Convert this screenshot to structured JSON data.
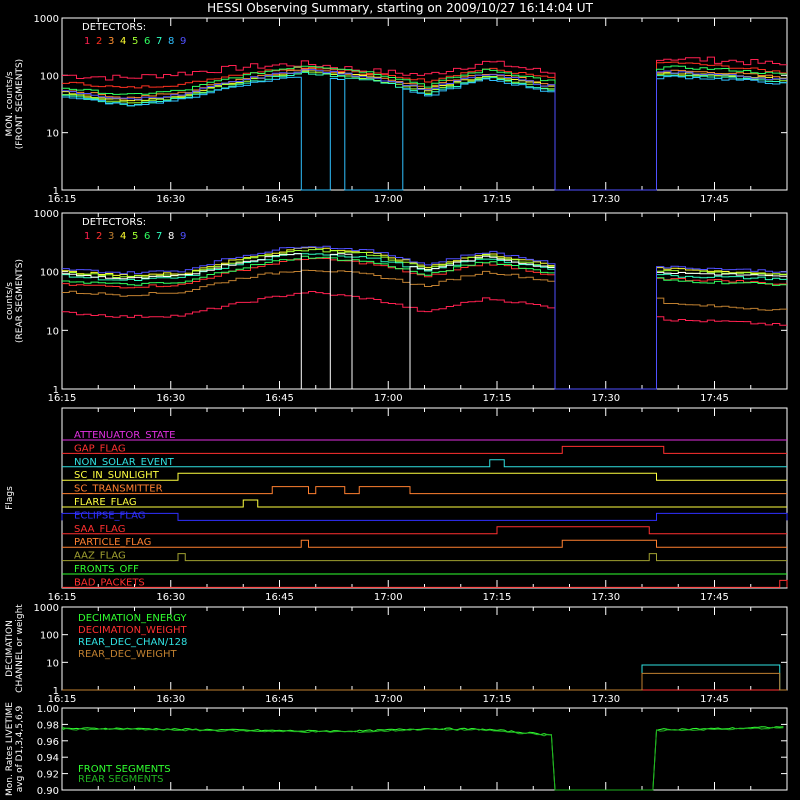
{
  "title": "HESSI Observing Summary, starting on 2009/10/27 16:14:04 UT",
  "colors": {
    "det": [
      "#ff2050",
      "#ff3020",
      "#ff9030",
      "#ffff30",
      "#a0ff30",
      "#30ff60",
      "#30ffc0",
      "#30c0ff",
      "#5050ff"
    ],
    "rear_det": [
      "#ff2050",
      "#ff3030",
      "#c08030",
      "#ffff30",
      "#a0ff30",
      "#30ff60",
      "#30ffc0",
      "#ffffff",
      "#5050ff"
    ]
  },
  "chart_data": [
    {
      "type": "line",
      "id": "front",
      "ylabel": [
        "MON. counts/s",
        "(FRONT SEGMENTS)"
      ],
      "yscale": "log",
      "ylim": [
        1,
        1000
      ],
      "yticks": [
        "1",
        "10",
        "100",
        "1000"
      ],
      "xlim": [
        "16:15",
        "17:55"
      ],
      "xticks": [
        "16:15",
        "16:30",
        "16:45",
        "17:00",
        "17:15",
        "17:30",
        "17:45"
      ],
      "legend_title": "DETECTORS:",
      "legend_items": [
        "1",
        "2",
        "3",
        "4",
        "5",
        "6",
        "7",
        "8",
        "9"
      ],
      "gaps": [
        [
          "17:23",
          "17:37"
        ]
      ],
      "series": [
        {
          "detector": "1",
          "levels": [
            100,
            90,
            110,
            140,
            160,
            120,
            100,
            170,
            110,
            140,
            200,
            180,
            150
          ],
          "noise": 0.25
        },
        {
          "detector": "2",
          "levels": [
            75,
            60,
            70,
            110,
            140,
            110,
            80,
            130,
            90,
            100,
            170,
            140,
            110
          ],
          "noise": 0.1
        },
        {
          "detector": "3",
          "levels": [
            55,
            40,
            50,
            90,
            130,
            100,
            60,
            110,
            70,
            90,
            120,
            110,
            90
          ],
          "noise": 0.1
        },
        {
          "detector": "4",
          "levels": [
            50,
            35,
            45,
            85,
            120,
            95,
            55,
            100,
            65,
            85,
            110,
            100,
            85
          ],
          "noise": 0.1
        },
        {
          "detector": "5",
          "levels": [
            48,
            33,
            42,
            80,
            115,
            90,
            50,
            95,
            60,
            80,
            105,
            95,
            80
          ],
          "noise": 0.1
        },
        {
          "detector": "6",
          "levels": [
            60,
            45,
            55,
            100,
            150,
            115,
            65,
            125,
            80,
            95,
            140,
            125,
            100
          ],
          "noise": 0.1
        },
        {
          "detector": "7",
          "levels": [
            45,
            30,
            40,
            75,
            110,
            85,
            45,
            90,
            55,
            75,
            100,
            90,
            75
          ],
          "noise": 0.1
        },
        {
          "detector": "8",
          "levels": [
            42,
            30,
            38,
            70,
            100,
            80,
            42,
            85,
            52,
            70,
            95,
            85,
            70
          ],
          "noise": 0.1,
          "dropouts": [
            [
              "16:48",
              "16:52"
            ],
            [
              "16:54",
              "17:02"
            ]
          ]
        },
        {
          "detector": "9",
          "levels": [
            52,
            38,
            46,
            85,
            125,
            95,
            55,
            105,
            65,
            85,
            115,
            100,
            82
          ],
          "noise": 0.1
        }
      ]
    },
    {
      "type": "line",
      "id": "rear",
      "ylabel": [
        "counts/s",
        "(REAR SEGMENTS)"
      ],
      "yscale": "log",
      "ylim": [
        1,
        1000
      ],
      "yticks": [
        "1",
        "10",
        "100",
        "1000"
      ],
      "xlim": [
        "16:15",
        "17:55"
      ],
      "xticks": [
        "16:15",
        "16:30",
        "16:45",
        "17:00",
        "17:15",
        "17:30",
        "17:45"
      ],
      "legend_title": "DETECTORS:",
      "legend_items": [
        "1",
        "2",
        "3",
        "4",
        "5",
        "6",
        "7",
        "8",
        "9"
      ],
      "gaps": [
        [
          "17:23",
          "17:37"
        ]
      ],
      "series": [
        {
          "detector": "1",
          "levels": [
            20,
            17,
            18,
            30,
            45,
            35,
            20,
            35,
            25,
            30,
            15,
            14,
            12
          ],
          "noise": 0.1
        },
        {
          "detector": "2",
          "levels": [
            60,
            55,
            60,
            110,
            170,
            140,
            80,
            140,
            90,
            100,
            75,
            70,
            60
          ],
          "noise": 0.1
        },
        {
          "detector": "3",
          "levels": [
            45,
            40,
            45,
            80,
            110,
            90,
            55,
            100,
            70,
            80,
            28,
            25,
            22
          ],
          "noise": 0.1
        },
        {
          "detector": "4",
          "levels": [
            100,
            85,
            95,
            170,
            260,
            210,
            120,
            200,
            130,
            150,
            110,
            100,
            90
          ],
          "noise": 0.1
        },
        {
          "detector": "5",
          "levels": [
            95,
            80,
            90,
            160,
            240,
            200,
            110,
            190,
            120,
            140,
            100,
            95,
            85
          ],
          "noise": 0.1
        },
        {
          "detector": "6",
          "levels": [
            70,
            60,
            65,
            120,
            180,
            150,
            85,
            150,
            95,
            110,
            70,
            65,
            60
          ],
          "noise": 0.1
        },
        {
          "detector": "7",
          "levels": [
            85,
            70,
            80,
            140,
            210,
            175,
            100,
            170,
            110,
            125,
            85,
            80,
            75
          ],
          "noise": 0.1
        },
        {
          "detector": "8",
          "levels": [
            90,
            75,
            85,
            150,
            220,
            185,
            105,
            180,
            115,
            130,
            95,
            90,
            80
          ],
          "noise": 0.1,
          "dropouts": [
            [
              "16:48",
              "16:52"
            ],
            [
              "16:55",
              "17:03"
            ]
          ]
        },
        {
          "detector": "9",
          "levels": [
            110,
            95,
            105,
            190,
            280,
            230,
            130,
            220,
            140,
            160,
            120,
            110,
            100
          ],
          "noise": 0.1
        }
      ]
    },
    {
      "type": "flags",
      "id": "flags",
      "ylabel": "Flags",
      "xlim": [
        "16:15",
        "17:55"
      ],
      "xticks": [
        "16:15",
        "16:30",
        "16:45",
        "17:00",
        "17:15",
        "17:30",
        "17:45"
      ],
      "flags": [
        {
          "name": "ATTENUATOR_STATE",
          "color": "#e030e0",
          "on": []
        },
        {
          "name": "GAP_FLAG",
          "color": "#ff3030",
          "on": [
            [
              "17:24",
              "17:38"
            ]
          ]
        },
        {
          "name": "NON_SOLAR_EVENT",
          "color": "#30e0e0",
          "on": [
            [
              "17:14",
              "17:16"
            ]
          ]
        },
        {
          "name": "SC_IN_SUNLIGHT",
          "color": "#ffff40",
          "on": [
            [
              "16:31",
              "17:37"
            ]
          ]
        },
        {
          "name": "SC_TRANSMITTER",
          "color": "#ff8030",
          "on": [
            [
              "16:44",
              "16:49"
            ],
            [
              "16:50",
              "16:54"
            ],
            [
              "16:56",
              "17:03"
            ]
          ]
        },
        {
          "name": "FLARE_FLAG",
          "color": "#ffff40",
          "on": [
            [
              "16:40",
              "16:42"
            ]
          ]
        },
        {
          "name": "ECLIPSE_FLAG",
          "color": "#3030ff",
          "on": [
            [
              "16:15",
              "16:31"
            ],
            [
              "17:37",
              "17:55"
            ]
          ]
        },
        {
          "name": "SAA_FLAG",
          "color": "#ff3030",
          "on": [
            [
              "17:15",
              "17:36"
            ]
          ]
        },
        {
          "name": "PARTICLE_FLAG",
          "color": "#ff8030",
          "on": [
            [
              "16:48",
              "16:49"
            ],
            [
              "17:24",
              "17:37"
            ]
          ]
        },
        {
          "name": "AAZ_FLAG",
          "color": "#a0a030",
          "on": [
            [
              "16:31",
              "16:32"
            ],
            [
              "17:36",
              "17:37"
            ]
          ]
        },
        {
          "name": "FRONTS_OFF",
          "color": "#30ff30",
          "on": []
        },
        {
          "name": "BAD_PACKETS",
          "color": "#ff3030",
          "on": [
            [
              "17:54",
              "17:55"
            ]
          ]
        }
      ]
    },
    {
      "type": "line",
      "id": "decimation",
      "ylabel": [
        "DECIMATION",
        "CHANNEL or weight"
      ],
      "yscale": "log",
      "ylim": [
        1,
        1000
      ],
      "yticks": [
        "1",
        "10",
        "100",
        "1000"
      ],
      "xlim": [
        "16:15",
        "17:55"
      ],
      "xticks": [
        "16:15",
        "16:30",
        "16:45",
        "17:00",
        "17:15",
        "17:30",
        "17:45"
      ],
      "legend_items": [
        "DECIMATION_ENERGY",
        "DECIMATION_WEIGHT",
        "REAR_DEC_CHAN/128",
        "REAR_DEC_WEIGHT"
      ],
      "series": [
        {
          "name": "DECIMATION_ENERGY",
          "color": "#30ff30",
          "steps": [
            [
              "16:15",
              "17:55",
              1
            ]
          ]
        },
        {
          "name": "DECIMATION_WEIGHT",
          "color": "#ff3030",
          "steps": [
            [
              "16:15",
              "17:35",
              1
            ],
            [
              "17:35",
              "17:54",
              1
            ],
            [
              "17:54",
              "17:55",
              1
            ]
          ]
        },
        {
          "name": "REAR_DEC_CHAN/128",
          "color": "#30e0e0",
          "steps": [
            [
              "16:15",
              "17:35",
              1
            ],
            [
              "17:35",
              "17:54",
              8
            ],
            [
              "17:54",
              "17:55",
              1
            ]
          ]
        },
        {
          "name": "REAR_DEC_WEIGHT",
          "color": "#c08030",
          "steps": [
            [
              "16:15",
              "17:35",
              1
            ],
            [
              "17:35",
              "17:54",
              4
            ],
            [
              "17:54",
              "17:55",
              1
            ]
          ]
        }
      ]
    },
    {
      "type": "line",
      "id": "livetime",
      "ylabel": [
        "Mon. Rates LIVETIME",
        "avg of D1,3,4,5,6,9"
      ],
      "ylim": [
        0.9,
        1.0
      ],
      "yticks": [
        "0.90",
        "0.92",
        "0.94",
        "0.96",
        "0.98",
        "1.00"
      ],
      "xlim": [
        "16:15",
        "17:55"
      ],
      "legend_items": [
        "FRONT SEGMENTS",
        "REAR SEGMENTS"
      ],
      "gaps": [
        [
          "17:23",
          "17:37"
        ]
      ],
      "series": [
        {
          "name": "FRONT SEGMENTS",
          "color": "#30ff30",
          "levels": [
            0.975,
            0.975,
            0.974,
            0.973,
            0.972,
            0.972,
            0.975,
            0.974,
            0.968,
            0.97,
            0.974,
            0.975,
            0.977
          ]
        },
        {
          "name": "REAR SEGMENTS",
          "color": "#20b020",
          "levels": [
            0.974,
            0.974,
            0.973,
            0.972,
            0.971,
            0.971,
            0.974,
            0.973,
            0.967,
            0.969,
            0.973,
            0.974,
            0.976
          ]
        }
      ]
    }
  ]
}
